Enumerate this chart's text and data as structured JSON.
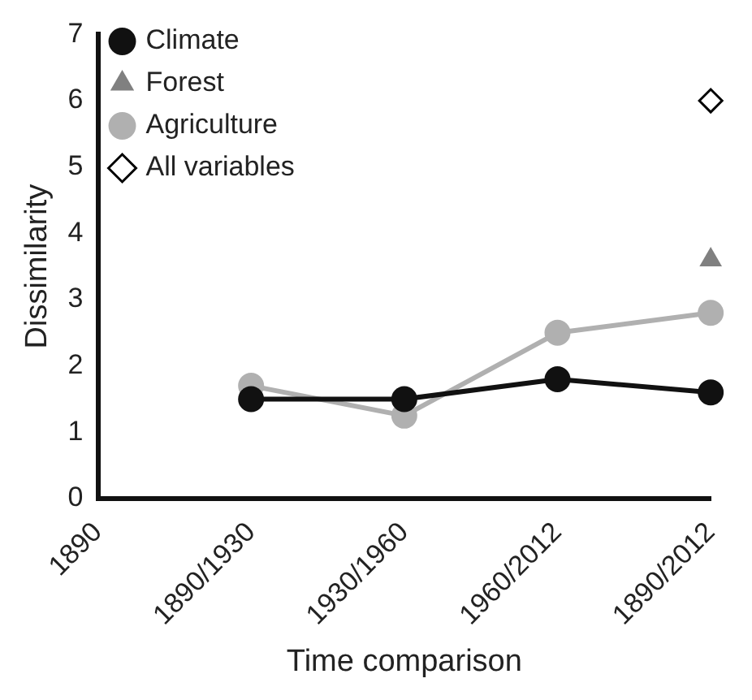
{
  "chart_data": {
    "type": "line",
    "xlabel": "Time comparison",
    "ylabel": "Dissimilarity",
    "categories": [
      "1890",
      "1890/1930",
      "1930/1960",
      "1960/2012",
      "1890/2012"
    ],
    "series": [
      {
        "name": "Climate",
        "color": "#111111",
        "marker": "circle",
        "values": [
          null,
          1.5,
          1.5,
          1.8,
          1.6
        ]
      },
      {
        "name": "Forest",
        "type": "scatter",
        "color": "#808080",
        "marker": "triangle",
        "x": [
          "1890/2012"
        ],
        "values": [
          3.6
        ]
      },
      {
        "name": "Agriculture",
        "color": "#b0b0b0",
        "marker": "circle",
        "values": [
          null,
          1.7,
          1.25,
          2.5,
          2.8
        ]
      },
      {
        "name": "All variables",
        "type": "scatter",
        "color": "#000000",
        "marker": "diamond",
        "x": [
          "1890/2012"
        ],
        "values": [
          6
        ]
      }
    ],
    "ylim": [
      0,
      7
    ],
    "yticks": [
      0,
      1,
      2,
      3,
      4,
      5,
      6,
      7
    ],
    "grid": false,
    "legend": "top left"
  }
}
